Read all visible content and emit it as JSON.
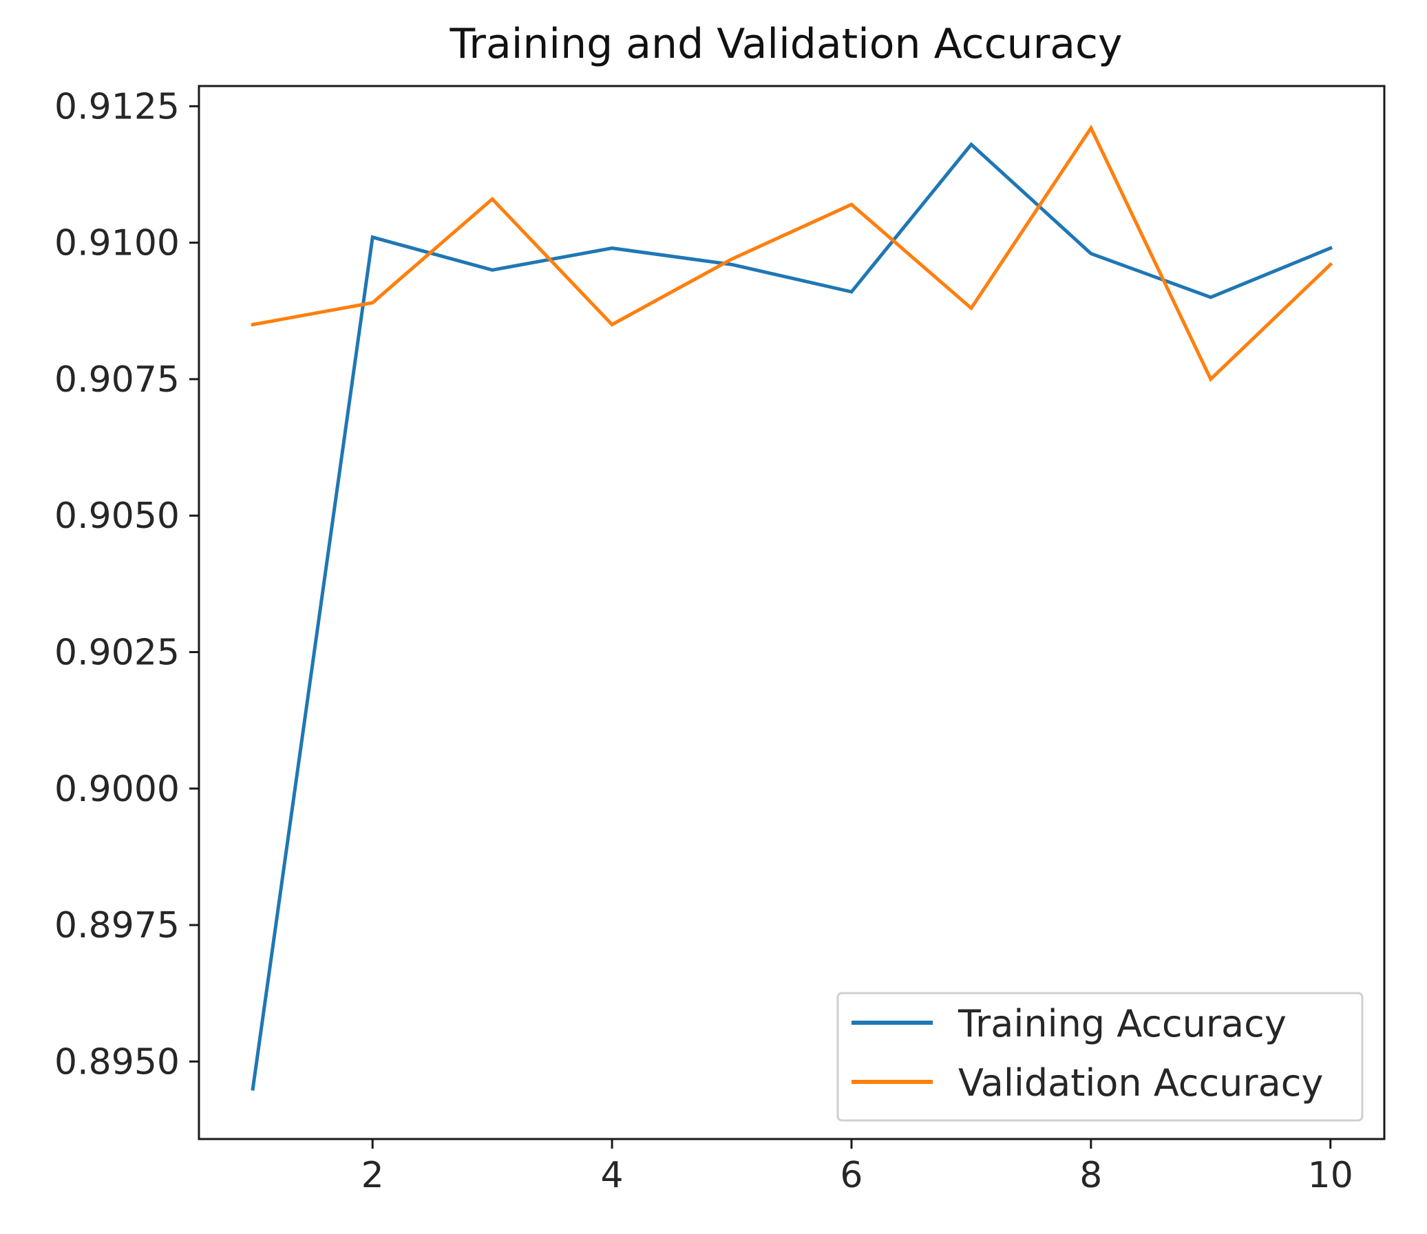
{
  "chart_data": {
    "type": "line",
    "title": "Training and Validation Accuracy",
    "xlabel": "",
    "ylabel": "",
    "x": [
      1,
      2,
      3,
      4,
      5,
      6,
      7,
      8,
      9,
      10
    ],
    "xlim": [
      0.55,
      10.45
    ],
    "ylim": [
      0.89358,
      0.91287
    ],
    "x_ticks": [
      2,
      4,
      6,
      8,
      10
    ],
    "y_ticks": [
      0.895,
      0.8975,
      0.9,
      0.9025,
      0.905,
      0.9075,
      0.91,
      0.9125
    ],
    "x_tick_labels": [
      "2",
      "4",
      "6",
      "8",
      "10"
    ],
    "y_tick_labels": [
      "0.8950",
      "0.8975",
      "0.9000",
      "0.9025",
      "0.9050",
      "0.9075",
      "0.9100",
      "0.9125"
    ],
    "grid": false,
    "legend_position": "lower-right",
    "series": [
      {
        "name": "Training Accuracy",
        "color": "#1f77b4",
        "values": [
          0.8945,
          0.9101,
          0.9095,
          0.9099,
          0.9096,
          0.9091,
          0.9118,
          0.9098,
          0.909,
          0.9099
        ]
      },
      {
        "name": "Validation Accuracy",
        "color": "#ff7f0e",
        "values": [
          0.9085,
          0.9089,
          0.9108,
          0.9085,
          0.9097,
          0.9107,
          0.9088,
          0.9121,
          0.9075,
          0.9096
        ]
      }
    ]
  }
}
